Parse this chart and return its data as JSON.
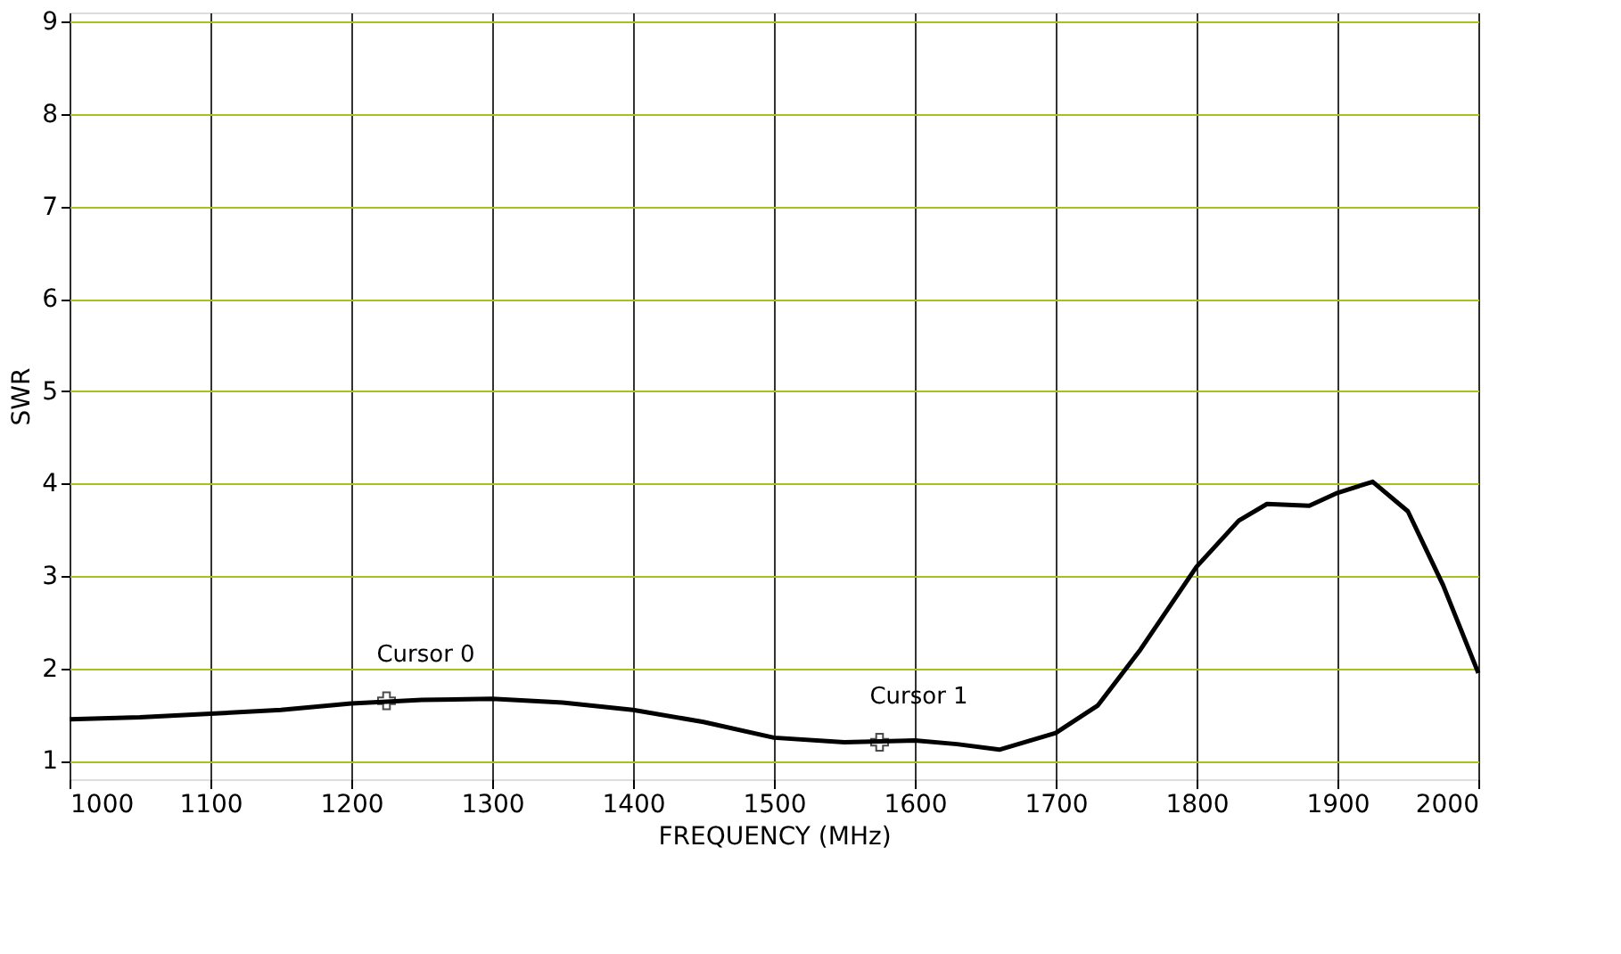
{
  "chart_data": {
    "type": "line",
    "xlabel": "FREQUENCY (MHz)",
    "ylabel": "SWR",
    "x": [
      1000,
      1050,
      1100,
      1150,
      1200,
      1250,
      1300,
      1350,
      1400,
      1450,
      1500,
      1550,
      1600,
      1630,
      1660,
      1700,
      1730,
      1760,
      1800,
      1830,
      1850,
      1880,
      1900,
      1925,
      1950,
      1975,
      2000
    ],
    "series": [
      {
        "color": "#000000",
        "values": [
          1.45,
          1.47,
          1.51,
          1.55,
          1.62,
          1.66,
          1.67,
          1.63,
          1.55,
          1.42,
          1.25,
          1.2,
          1.22,
          1.18,
          1.12,
          1.3,
          1.6,
          2.2,
          3.1,
          3.6,
          3.78,
          3.76,
          3.9,
          4.02,
          3.7,
          2.9,
          1.95
        ]
      }
    ],
    "xlim": [
      1000,
      2000
    ],
    "xticks": [
      1000,
      1100,
      1200,
      1300,
      1400,
      1500,
      1600,
      1700,
      1800,
      1900,
      2000
    ],
    "ylim": [
      0.8,
      9.1
    ],
    "yticks": [
      1,
      2,
      3,
      4,
      5,
      6,
      7,
      8,
      9
    ],
    "grid": true,
    "marker": "none",
    "line_style": "solid",
    "annotations": [
      {
        "text": "Cursor 0",
        "x": 1225,
        "y": 1.65
      },
      {
        "text": "Cursor 1",
        "x": 1575,
        "y": 1.2
      }
    ]
  }
}
